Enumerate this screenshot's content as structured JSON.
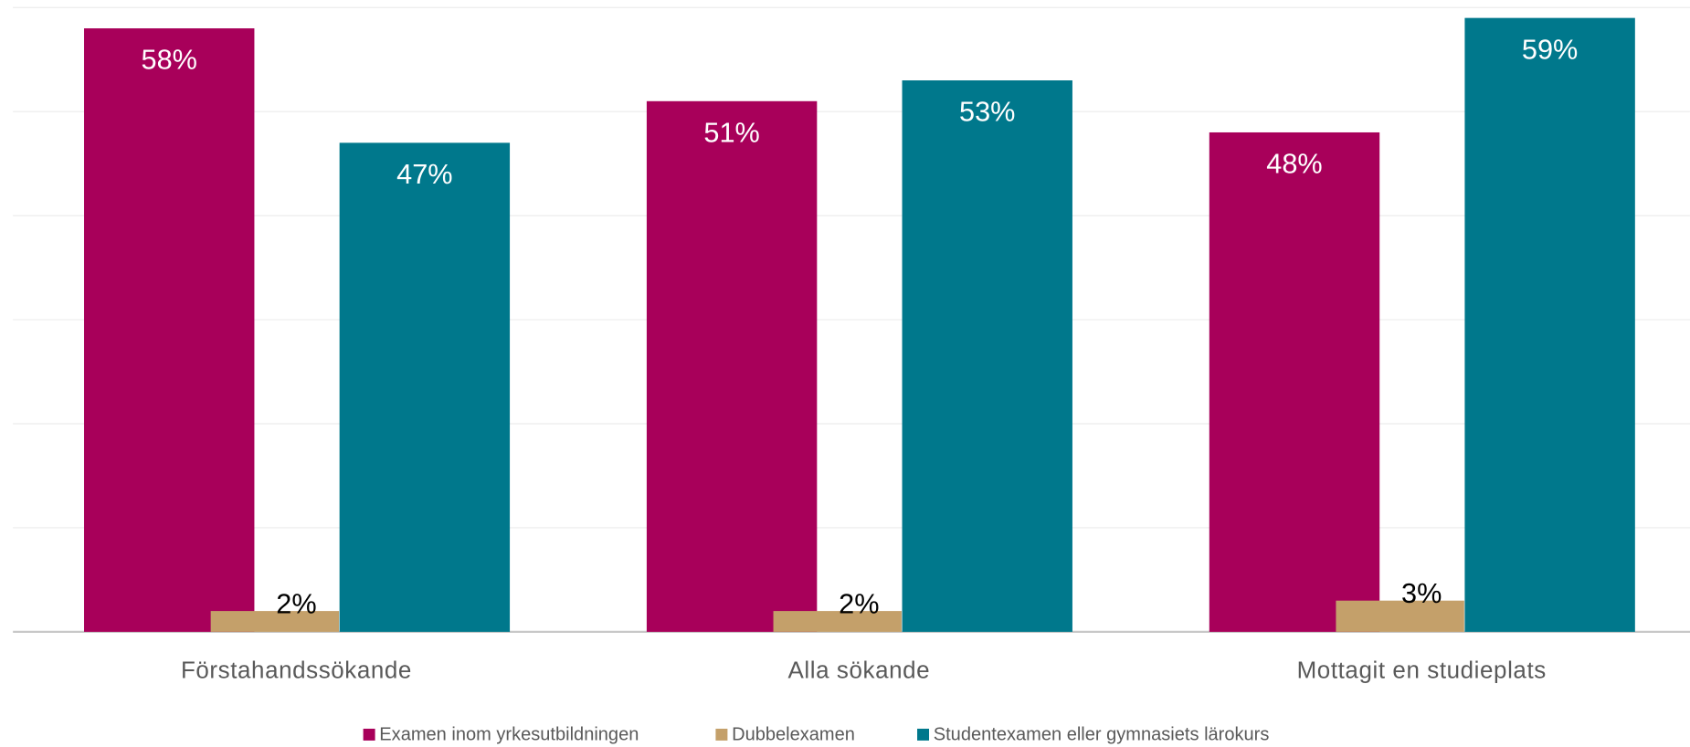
{
  "chart_data": {
    "type": "bar",
    "categories": [
      "Förstahandssökande",
      "Alla sökande",
      "Mottagit en studieplats"
    ],
    "series": [
      {
        "name": "Examen inom yrkesutbildningen",
        "color": "#a8005a",
        "values": [
          58,
          51,
          48
        ],
        "value_labels": [
          "58%",
          "51%",
          "48%"
        ]
      },
      {
        "name": "Dubbelexamen",
        "color": "#c4a06a",
        "values": [
          2,
          2,
          3
        ],
        "value_labels": [
          "2%",
          "2%",
          "3%"
        ]
      },
      {
        "name": "Studentexamen eller gymnasiets lärokurs",
        "color": "#00788c",
        "values": [
          47,
          53,
          59
        ],
        "value_labels": [
          "47%",
          "53%",
          "59%"
        ]
      }
    ],
    "ylim": [
      0,
      60
    ],
    "yticks": [
      0,
      10,
      20,
      30,
      40,
      50,
      60
    ],
    "grid": true,
    "legend": "bottom"
  }
}
